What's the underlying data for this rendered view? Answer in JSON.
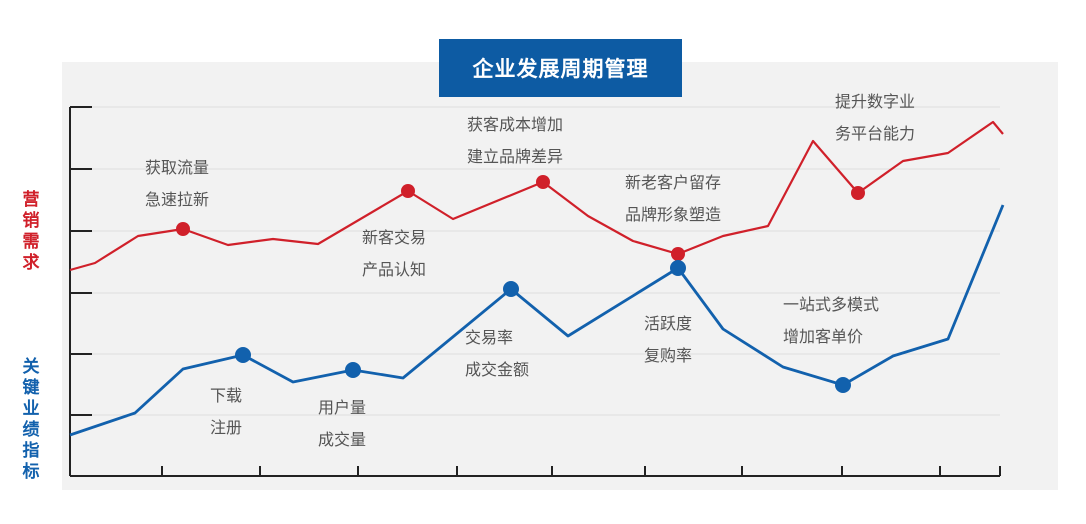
{
  "title": "企业发展周期管理",
  "colors": {
    "title_bg": "#0d5ba3",
    "red": "#d0202a",
    "blue": "#1261ad",
    "panel": "#f2f2f2",
    "axis": "#222222"
  },
  "chart_data": {
    "type": "line",
    "grid": true,
    "x_ticks": 10,
    "series": [
      {
        "name": "营销需求",
        "color": "#d0202a",
        "values": [
          [
            0,
            270
          ],
          [
            25,
            263
          ],
          [
            68,
            236
          ],
          [
            113,
            229
          ],
          [
            158,
            245
          ],
          [
            203,
            239
          ],
          [
            248,
            244
          ],
          [
            338,
            191
          ],
          [
            383,
            219
          ],
          [
            473,
            182
          ],
          [
            518,
            216
          ],
          [
            563,
            241
          ],
          [
            608,
            254
          ],
          [
            653,
            236
          ],
          [
            698,
            226
          ],
          [
            743,
            141
          ],
          [
            788,
            193
          ],
          [
            833,
            161
          ],
          [
            878,
            153
          ],
          [
            923,
            122
          ],
          [
            933,
            134
          ]
        ],
        "markers": [
          3,
          7,
          9,
          12,
          16
        ]
      },
      {
        "name": "关键业绩指标",
        "color": "#1261ad",
        "values": [
          [
            0,
            435
          ],
          [
            65,
            413
          ],
          [
            113,
            369
          ],
          [
            173,
            355
          ],
          [
            223,
            382
          ],
          [
            283,
            370
          ],
          [
            333,
            378
          ],
          [
            441,
            289
          ],
          [
            498,
            336
          ],
          [
            608,
            268
          ],
          [
            653,
            329
          ],
          [
            713,
            367
          ],
          [
            773,
            385
          ],
          [
            823,
            356
          ],
          [
            878,
            339
          ],
          [
            933,
            205
          ]
        ],
        "markers": [
          3,
          5,
          7,
          9,
          12
        ]
      }
    ],
    "annotations": [
      {
        "lines": [
          "获取流量",
          "急速拉新"
        ]
      },
      {
        "lines": [
          "新客交易",
          "产品认知"
        ]
      },
      {
        "lines": [
          "获客成本增加",
          "建立品牌差异"
        ]
      },
      {
        "lines": [
          "新老客户留存",
          "品牌形象塑造"
        ]
      },
      {
        "lines": [
          "提升数字业",
          "务平台能力"
        ]
      },
      {
        "lines": [
          "下载",
          "注册"
        ]
      },
      {
        "lines": [
          "用户量",
          "成交量"
        ]
      },
      {
        "lines": [
          "交易率",
          "成交金额"
        ]
      },
      {
        "lines": [
          "活跃度",
          "复购率"
        ]
      },
      {
        "lines": [
          "一站式多模式",
          "增加客单价"
        ]
      }
    ]
  }
}
